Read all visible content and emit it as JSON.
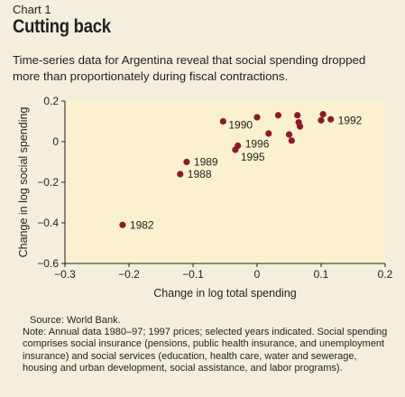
{
  "header": {
    "chart_label": "Chart 1",
    "title": "Cutting back",
    "subtitle": "Time-series data for Argentina reveal that social spending dropped more than proportionately during fiscal contractions."
  },
  "footer": {
    "source": "Source: World Bank.",
    "note": "Note: Annual data 1980–97; 1997 prices; selected years indicated. Social spending comprises social insurance (pensions, public health insurance, and unemployment insurance) and social services (education, health care, water and sewerage, housing and urban development, social assistance, and labor programs)."
  },
  "colors": {
    "background": "#f3efdc",
    "plot_area": "#fbf0cf",
    "marker": "#8b1a2b",
    "text": "#231f20"
  },
  "chart_data": {
    "type": "scatter",
    "xlabel": "Change in log total spending",
    "ylabel": "Change in log social spending",
    "xlim": [
      -0.3,
      0.2
    ],
    "ylim": [
      -0.6,
      0.2
    ],
    "xticks": [
      -0.3,
      -0.2,
      -0.1,
      0,
      0.1,
      0.2
    ],
    "xtick_labels": [
      "−0.3",
      "−0.2",
      "−0.1",
      "0",
      "0.1",
      "0.2"
    ],
    "yticks": [
      0.2,
      0,
      -0.2,
      -0.4,
      -0.6
    ],
    "ytick_labels": [
      "0.2",
      "0",
      "−0.2",
      "−0.4",
      "−0.6"
    ],
    "grid": false,
    "points": [
      {
        "x": -0.21,
        "y": -0.41,
        "label": "1982"
      },
      {
        "x": -0.12,
        "y": -0.16,
        "label": "1988"
      },
      {
        "x": -0.11,
        "y": -0.1,
        "label": "1989"
      },
      {
        "x": -0.053,
        "y": 0.1,
        "label": "1990"
      },
      {
        "x": -0.03,
        "y": -0.02,
        "label": "1996"
      },
      {
        "x": -0.034,
        "y": -0.04,
        "label": "1995"
      },
      {
        "x": 0.0,
        "y": 0.12,
        "label": ""
      },
      {
        "x": 0.018,
        "y": 0.04,
        "label": ""
      },
      {
        "x": 0.033,
        "y": 0.13,
        "label": ""
      },
      {
        "x": 0.05,
        "y": 0.035,
        "label": ""
      },
      {
        "x": 0.054,
        "y": 0.005,
        "label": ""
      },
      {
        "x": 0.063,
        "y": 0.13,
        "label": ""
      },
      {
        "x": 0.065,
        "y": 0.095,
        "label": ""
      },
      {
        "x": 0.067,
        "y": 0.075,
        "label": ""
      },
      {
        "x": 0.1,
        "y": 0.105,
        "label": ""
      },
      {
        "x": 0.103,
        "y": 0.135,
        "label": ""
      },
      {
        "x": 0.115,
        "y": 0.11,
        "label": "1992"
      }
    ]
  }
}
